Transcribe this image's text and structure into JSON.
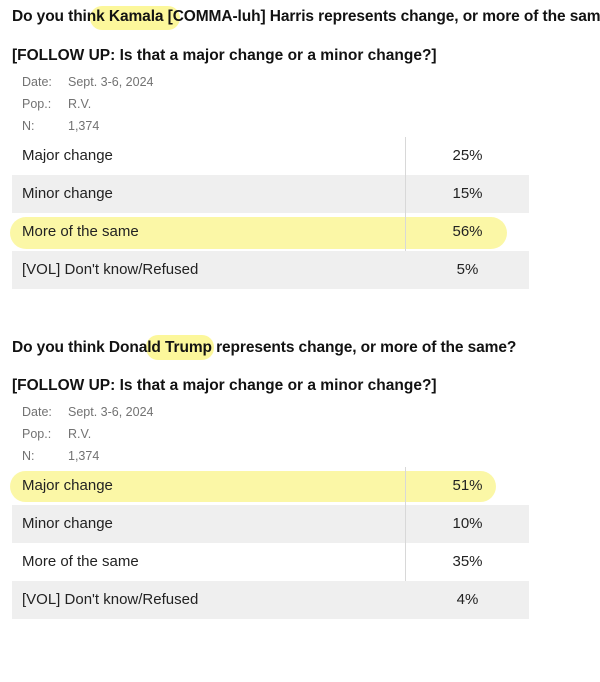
{
  "sections": [
    {
      "question_parts": [
        "Do you think ",
        "Kamala",
        " [COMMA-luh] Harris represents change, or more of the same?"
      ],
      "followup": "[FOLLOW UP: Is that a major change or a minor change?]",
      "meta": [
        {
          "key": "Date:",
          "value": "Sept. 3-6, 2024"
        },
        {
          "key": "Pop.:",
          "value": "R.V."
        },
        {
          "key": "N:",
          "value": "1,374"
        }
      ],
      "rows": [
        {
          "label": "Major change",
          "value": "25%"
        },
        {
          "label": "Minor change",
          "value": "15%"
        },
        {
          "label": "More of the same",
          "value": "56%"
        },
        {
          "label": "[VOL] Don't know/Refused",
          "value": "5%"
        }
      ]
    },
    {
      "question_parts": [
        "Do you think Donald ",
        "Trump",
        " represents change, or more of the same?"
      ],
      "followup": "[FOLLOW UP: Is that a major change or a minor change?]",
      "meta": [
        {
          "key": "Date:",
          "value": "Sept. 3-6, 2024"
        },
        {
          "key": "Pop.:",
          "value": "R.V."
        },
        {
          "key": "N:",
          "value": "1,374"
        }
      ],
      "rows": [
        {
          "label": "Major change",
          "value": "51%"
        },
        {
          "label": "Minor change",
          "value": "10%"
        },
        {
          "label": "More of the same",
          "value": "35%"
        },
        {
          "label": "[VOL] Don't know/Refused",
          "value": "4%"
        }
      ]
    }
  ],
  "highlight_color": "#fbf68a"
}
